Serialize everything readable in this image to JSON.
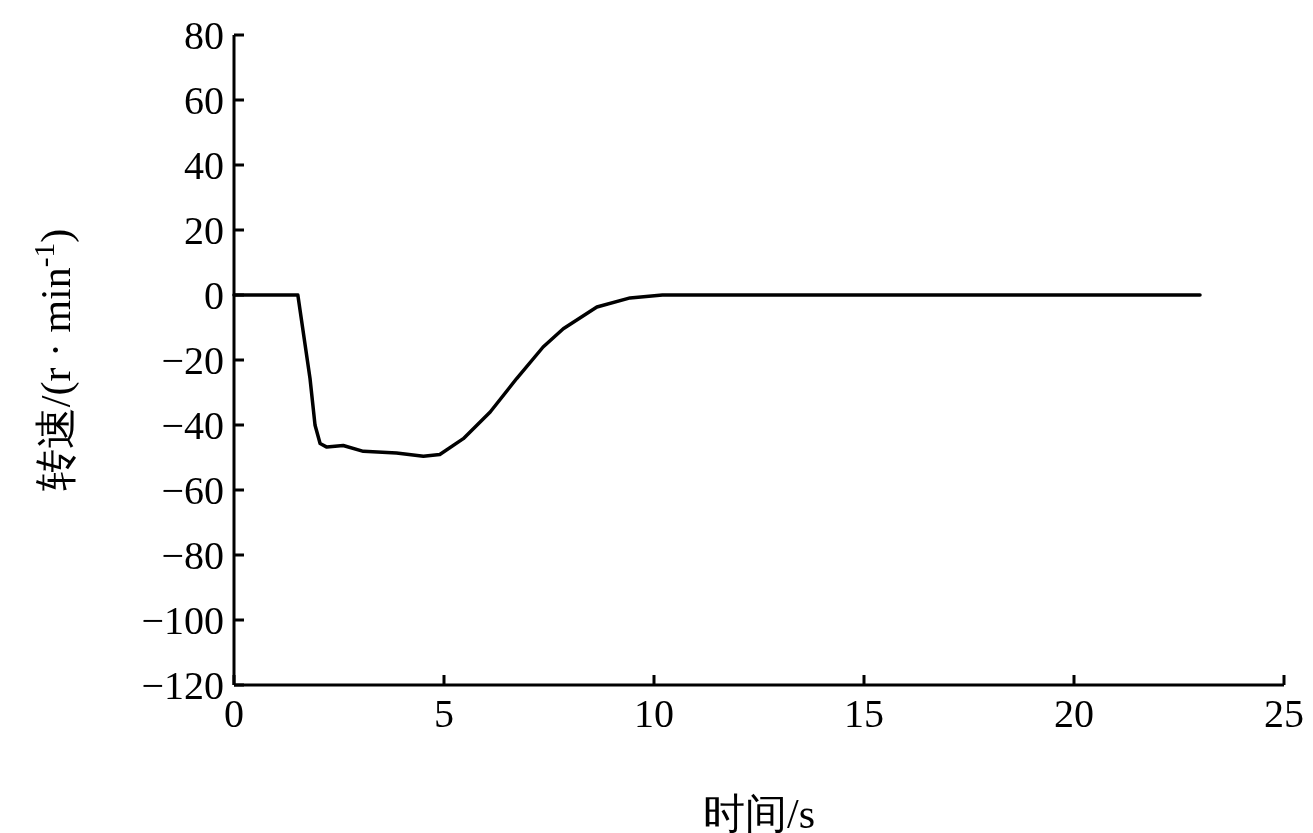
{
  "chart_data": {
    "type": "line",
    "xlabel": "时间/s",
    "ylabel": "转速/(r · min$^{-1}$)",
    "x": [
      0,
      1.52,
      1.81,
      1.93,
      2.05,
      2.21,
      2.6,
      3.08,
      3.87,
      4.51,
      4.9,
      5.46,
      6.1,
      6.73,
      7.36,
      7.84,
      8.64,
      9.43,
      10.2,
      23
    ],
    "values": [
      0,
      0,
      -25.7,
      -40.1,
      -45.7,
      -46.8,
      -46.3,
      -48.1,
      -48.6,
      -49.6,
      -49.1,
      -44.2,
      -36,
      -25.7,
      -16,
      -10.4,
      -3.7,
      -0.9,
      0,
      0
    ],
    "color": "#000000",
    "xlim": [
      0,
      25
    ],
    "ylim": [
      -120,
      80
    ],
    "xticks": [
      0,
      5,
      10,
      15,
      20,
      25
    ],
    "yticks": [
      -120,
      -100,
      -80,
      -60,
      -40,
      -20,
      0,
      20,
      40,
      60,
      80
    ]
  }
}
